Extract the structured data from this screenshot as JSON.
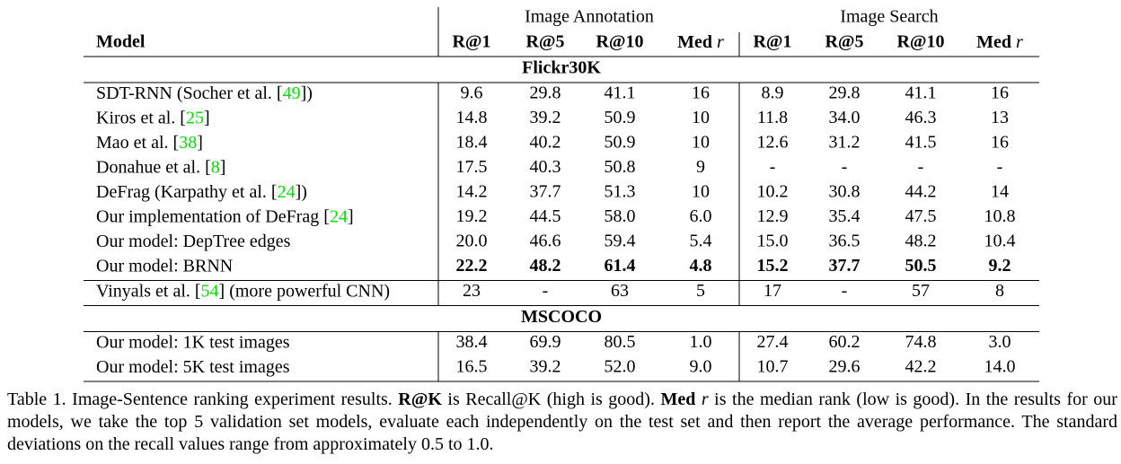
{
  "table": {
    "group_headers": [
      "Image Annotation",
      "Image Search"
    ],
    "model_header": "Model",
    "metric_headers": [
      "R@1",
      "R@5",
      "R@10"
    ],
    "median_header": [
      "Med",
      "r"
    ],
    "sections": [
      {
        "title": "Flickr30K",
        "groups": [
          [
            {
              "model": [
                "SDT-RNN (Socher et al. [",
                {
                  "cite": "49"
                },
                "])"
              ],
              "cells": [
                "9.6",
                "29.8",
                "41.1",
                "16",
                "8.9",
                "29.8",
                "41.1",
                "16"
              ]
            },
            {
              "model": [
                "Kiros et al. [",
                {
                  "cite": "25"
                },
                "]"
              ],
              "cells": [
                "14.8",
                "39.2",
                "50.9",
                "10",
                "11.8",
                "34.0",
                "46.3",
                "13"
              ]
            },
            {
              "model": [
                "Mao et al. [",
                {
                  "cite": "38"
                },
                "]"
              ],
              "cells": [
                "18.4",
                "40.2",
                "50.9",
                "10",
                "12.6",
                "31.2",
                "41.5",
                "16"
              ]
            },
            {
              "model": [
                "Donahue et al. [",
                {
                  "cite": "8"
                },
                "]"
              ],
              "cells": [
                "17.5",
                "40.3",
                "50.8",
                "9",
                "-",
                "-",
                "-",
                "-"
              ]
            },
            {
              "model": [
                "DeFrag (Karpathy et al. [",
                {
                  "cite": "24"
                },
                "])"
              ],
              "cells": [
                "14.2",
                "37.7",
                "51.3",
                "10",
                "10.2",
                "30.8",
                "44.2",
                "14"
              ]
            },
            {
              "model": [
                "Our implementation of DeFrag [",
                {
                  "cite": "24"
                },
                "]"
              ],
              "cells": [
                "19.2",
                "44.5",
                "58.0",
                "6.0",
                "12.9",
                "35.4",
                "47.5",
                "10.8"
              ]
            },
            {
              "model": [
                "Our model: DepTree edges"
              ],
              "cells": [
                "20.0",
                "46.6",
                "59.4",
                "5.4",
                "15.0",
                "36.5",
                "48.2",
                "10.4"
              ]
            },
            {
              "model": [
                "Our model: BRNN"
              ],
              "cells": [
                "22.2",
                "48.2",
                "61.4",
                "4.8",
                "15.2",
                "37.7",
                "50.5",
                "9.2"
              ],
              "bold": true
            }
          ],
          [
            {
              "model": [
                "Vinyals et al. [",
                {
                  "cite": "54"
                },
                "] (more powerful CNN)"
              ],
              "cells": [
                "23",
                "-",
                "63",
                "5",
                "17",
                "-",
                "57",
                "8"
              ]
            }
          ]
        ]
      },
      {
        "title": "MSCOCO",
        "groups": [
          [
            {
              "model": [
                "Our model: 1K test images"
              ],
              "cells": [
                "38.4",
                "69.9",
                "80.5",
                "1.0",
                "27.4",
                "60.2",
                "74.8",
                "3.0"
              ]
            },
            {
              "model": [
                "Our model: 5K test images"
              ],
              "cells": [
                "16.5",
                "39.2",
                "52.0",
                "9.0",
                "10.7",
                "29.6",
                "42.2",
                "14.0"
              ]
            }
          ]
        ]
      }
    ]
  },
  "caption": [
    {
      "text": "Table 1. Image-Sentence ranking experiment results. ",
      "style": "normal"
    },
    {
      "text": "R@K",
      "style": "bold"
    },
    {
      "text": " is Recall@K (high is good). ",
      "style": "normal"
    },
    {
      "text": "Med ",
      "style": "bold"
    },
    {
      "text": "r",
      "style": "italic"
    },
    {
      "text": " is the median rank (low is good). In the results for our models, we take the top 5 validation set models, evaluate each independently on the test set and then report the average performance. The standard deviations on the recall values range from approximately 0.5 to 1.0.",
      "style": "normal"
    }
  ]
}
